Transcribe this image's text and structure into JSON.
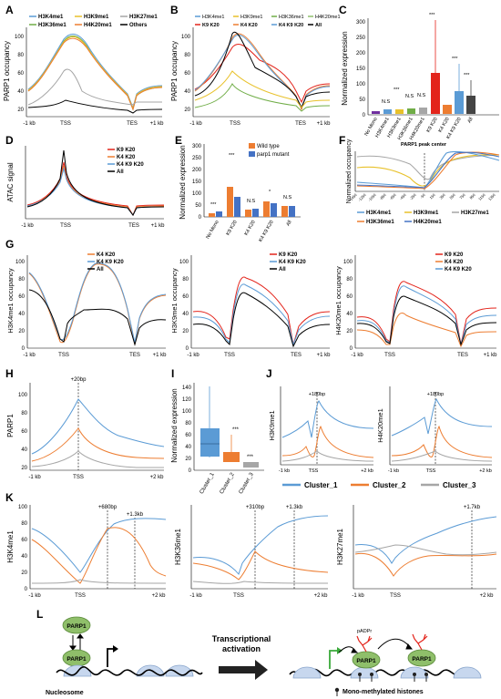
{
  "colors": {
    "blue": "#5b9bd5",
    "orange": "#ed7d31",
    "gray": "#a6a6a6",
    "yellow": "#e8c12a",
    "green": "#70ad47",
    "red": "#e3241b",
    "black": "#000000",
    "purple": "#7030a0",
    "pale_green": "#8fbf6a",
    "nucleosome": "#c7d7ee"
  },
  "panels": {
    "A": {
      "letter": "A",
      "ylabel": "PARP1 occupancy",
      "ticks_y": [
        "20",
        "40",
        "60",
        "80",
        "100"
      ],
      "ticks_x": [
        "-1 kb",
        "TSS",
        "TES",
        "+1 kb"
      ],
      "legend": [
        "H3K4me1",
        "H3K9me1",
        "H3K27me1",
        "H3K36me1",
        "H4K20me1",
        "Others"
      ]
    },
    "B": {
      "letter": "B",
      "ylabel": "PARP1 occupancy",
      "ticks_y": [
        "20",
        "40",
        "60",
        "80",
        "100"
      ],
      "ticks_x": [
        "-1 kb",
        "TSS",
        "TES",
        "+1 kb"
      ],
      "legend": [
        "H3K4me1",
        "H3K9me1",
        "H3K36me1",
        "H4K20me1",
        "K9 K20",
        "K4 K20",
        "K4 K9 K20",
        "All"
      ]
    },
    "C": {
      "letter": "C",
      "ylabel": "Normalized expression",
      "ticks_y": [
        "0",
        "50",
        "100",
        "150",
        "200",
        "250",
        "300"
      ],
      "categories": [
        "No Mono",
        "H3K4me1",
        "H3K9me1",
        "H3K36me1",
        "H4K20me1",
        "K9 K20",
        "K4 K20",
        "K4 K9 K20",
        "All"
      ],
      "sig": [
        "N.S",
        "***",
        "N.S",
        "N.S",
        "***",
        "***",
        "***"
      ]
    },
    "D": {
      "letter": "D",
      "ylabel": "ATAC signal",
      "ticks_y": [
        "0",
        "20",
        "40",
        "60",
        "80",
        "100"
      ],
      "ticks_x": [
        "-1 kb",
        "TSS",
        "TES",
        "+1 kb"
      ],
      "legend": [
        "K9 K20",
        "K4 K20",
        "K4 K9 K20",
        "All"
      ]
    },
    "E": {
      "letter": "E",
      "ylabel": "Normalized expression",
      "ticks_y": [
        "0",
        "50",
        "100",
        "150",
        "200",
        "250",
        "300"
      ],
      "categories": [
        "No Mono",
        "K9 K20",
        "K4 K20",
        "K4 K9 K20",
        "All"
      ],
      "sig": [
        "***",
        "***",
        "N.S",
        "*",
        "N.S"
      ],
      "legend": [
        "Wild type",
        "parp1 mutant"
      ]
    },
    "F": {
      "letter": "F",
      "ylabel": "Normalized occupancy",
      "annotation": "PARP1 peak center",
      "ticks_x": [
        "-1450",
        "-1250",
        "-1050",
        "-850",
        "-650",
        "-450",
        "-250",
        "-50",
        "150",
        "350",
        "550",
        "750",
        "950",
        "1150",
        "1350"
      ],
      "legend": [
        "H3K4me1",
        "H3K9me1",
        "H3K27me1",
        "H3K36me1",
        "H4K20me1"
      ]
    },
    "G": {
      "letter": "G",
      "ticks_y": [
        "0",
        "20",
        "40",
        "60",
        "80",
        "100"
      ],
      "ticks_x": [
        "-1 kb",
        "TSS",
        "TES",
        "+1 kb"
      ],
      "g1": {
        "ylabel": "H3K4me1 occupancy",
        "legend": [
          "K4 K20",
          "K4 K9 K20",
          "All"
        ]
      },
      "g2": {
        "ylabel": "H3K9me1 occupancy",
        "legend": [
          "K9 K20",
          "K4 K9 K20",
          "All"
        ]
      },
      "g3": {
        "ylabel": "H4K20me1 occupancy",
        "legend": [
          "K9 K20",
          "K4 K20",
          "K4 K9 K20"
        ]
      }
    },
    "H": {
      "letter": "H",
      "ylabel": "PARP1",
      "annotation": "+20bp",
      "ticks_y": [
        "20",
        "40",
        "60",
        "80",
        "100"
      ],
      "ticks_x": [
        "-1 kb",
        "TSS",
        "+2 kb"
      ]
    },
    "I": {
      "letter": "I",
      "ylabel": "Normalized expression",
      "ticks_y": [
        "0",
        "20",
        "40",
        "60",
        "80",
        "100",
        "120",
        "140"
      ],
      "categories": [
        "Cluster_1",
        "Cluster_2",
        "Cluster_3"
      ],
      "sig": [
        "***",
        "***"
      ]
    },
    "J": {
      "letter": "J",
      "j1": {
        "ylabel": "H3K9me1",
        "annotation": "+180bp"
      },
      "j2": {
        "ylabel": "H4K20me1",
        "annotation": "+180bp"
      },
      "ticks_x": [
        "-1 kb",
        "TSS",
        "+2 kb"
      ]
    },
    "K": {
      "letter": "K",
      "ticks_y": [
        "0",
        "20",
        "40",
        "60",
        "80",
        "100"
      ],
      "ticks_x": [
        "-1 kb",
        "TSS",
        "+2 kb"
      ],
      "k1": {
        "ylabel": "H3K4me1",
        "ann1": "+680bp",
        "ann2": "+1.3kb"
      },
      "k2": {
        "ylabel": "H3K36me1",
        "ann1": "+310bp",
        "ann2": "+1.3kb"
      },
      "k3": {
        "ylabel": "H3K27me1",
        "ann1": "+1.7kb"
      }
    },
    "L": {
      "letter": "L",
      "parp1": "PARP1",
      "nucleosome": "Nucleosome",
      "arrow_label_1": "Transcriptional",
      "arrow_label_2": "activation",
      "padpr": "pADPr",
      "mono": "Mono-methylated histones"
    }
  },
  "cluster_legend": [
    "Cluster_1",
    "Cluster_2",
    "Cluster_3"
  ]
}
